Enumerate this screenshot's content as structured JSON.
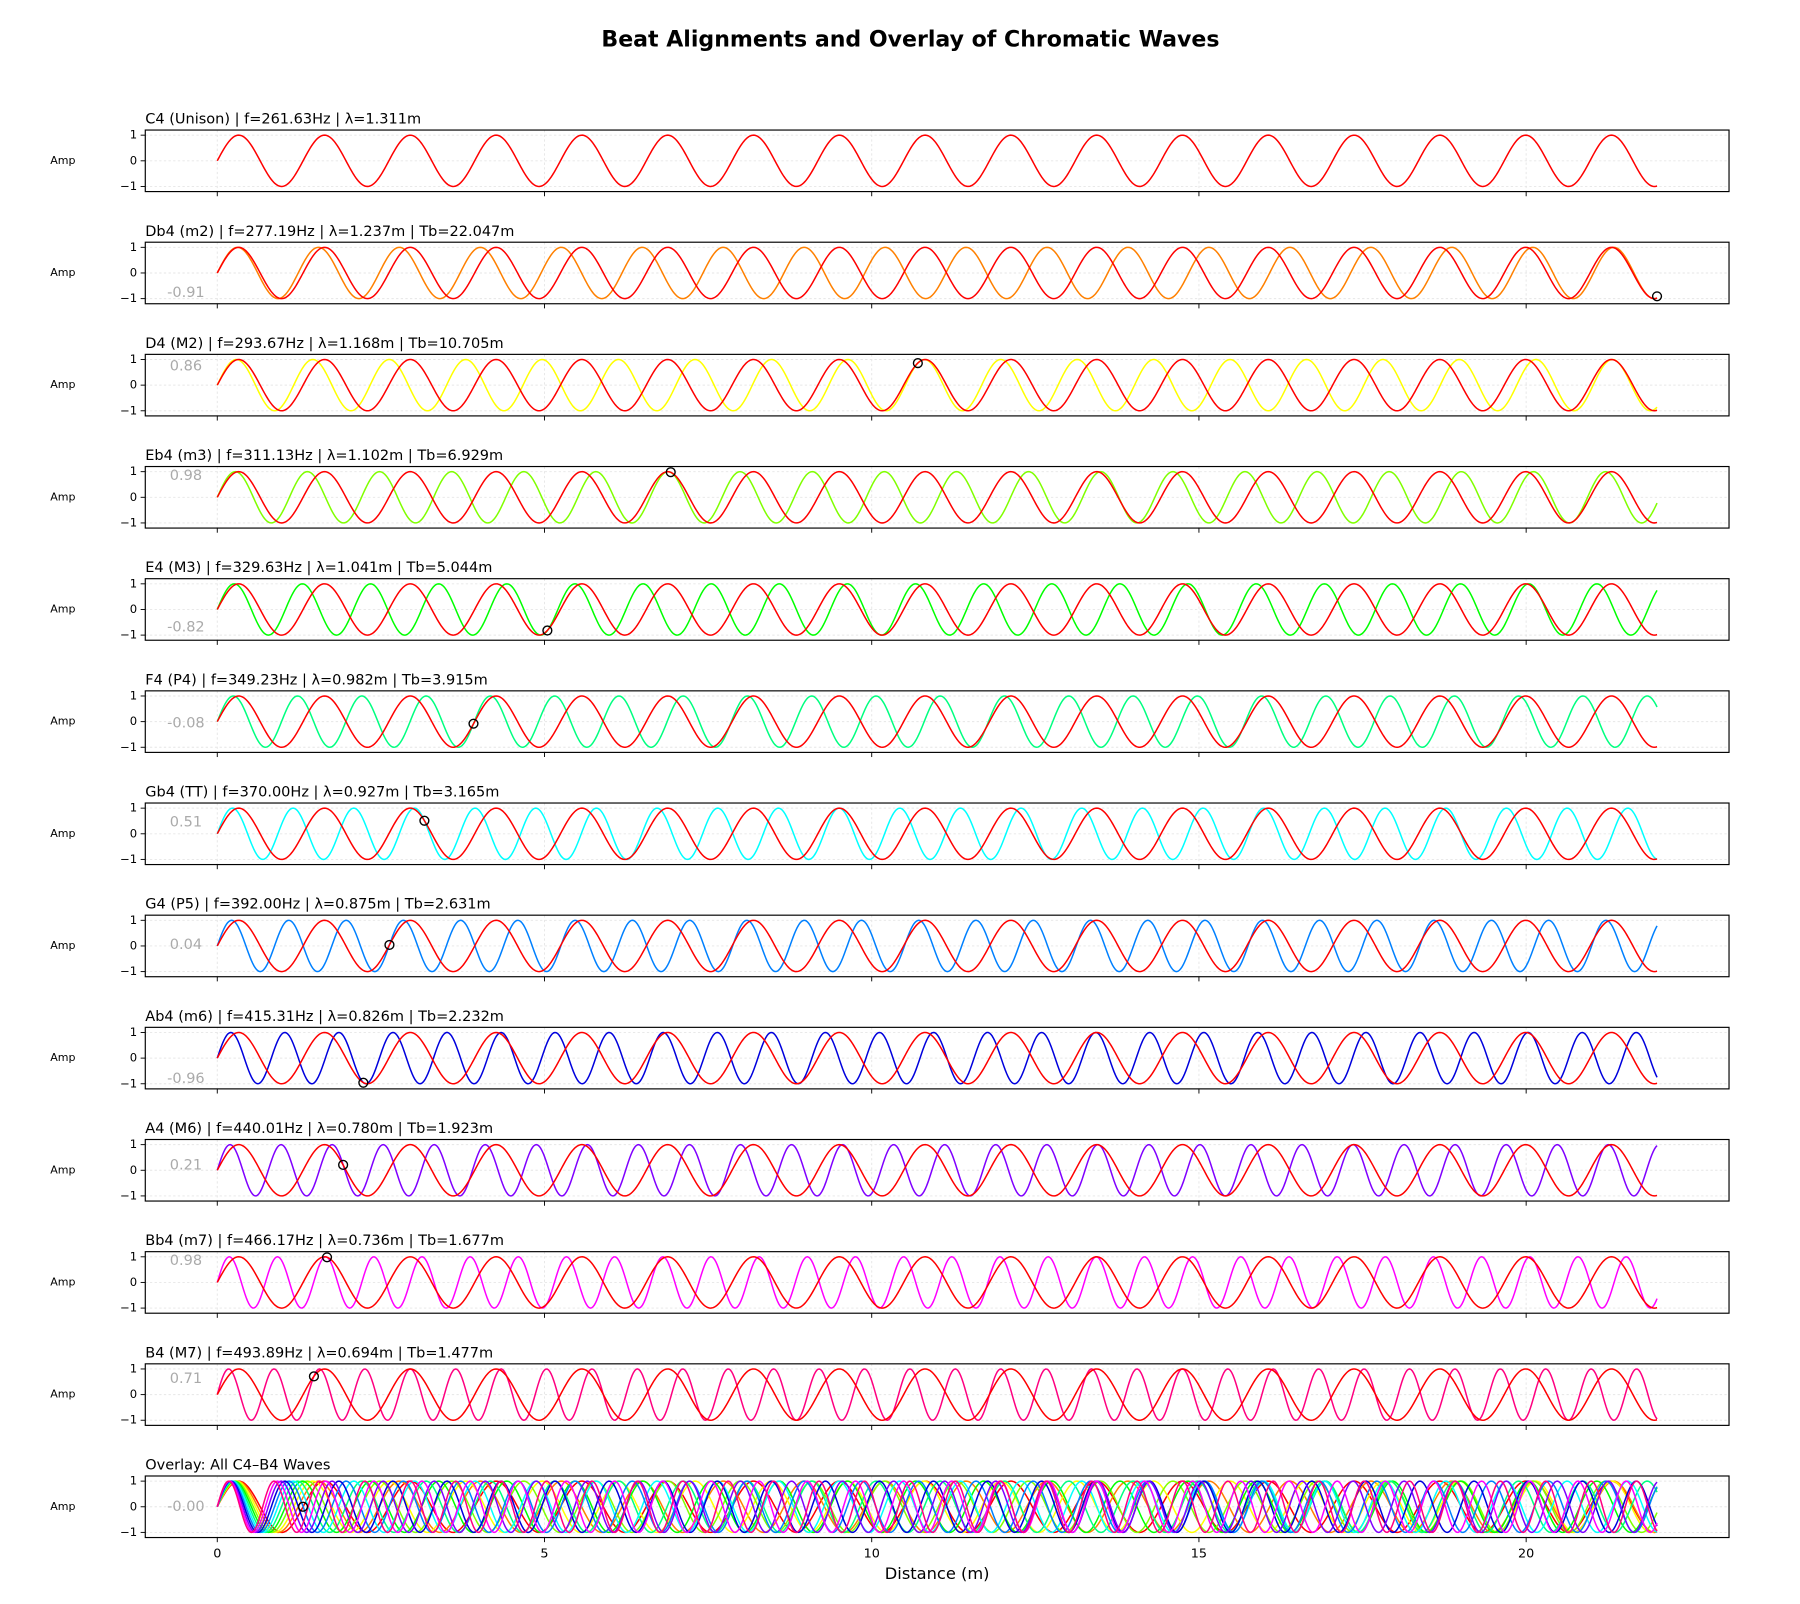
{
  "title": "Beat Alignments and Overlay of Chromatic Waves",
  "chart_data": [
    {
      "type": "wave",
      "title": "C4 (Unison) | f=261.63Hz | λ=1.311m",
      "ylabel": "Amp",
      "xlim": [
        -1.1,
        23.1
      ],
      "ylim": [
        -1.2,
        1.2
      ],
      "xticks": [
        0,
        5,
        10,
        15,
        20
      ],
      "yticks": [
        {
          "value": -1,
          "label": "−1"
        },
        0,
        1
      ],
      "series": [
        {
          "color": "#ff0000",
          "wavelength": 1.311
        }
      ]
    },
    {
      "type": "wave",
      "title": "Db4 (m2) | f=277.19Hz | λ=1.237m | Tb=22.047m",
      "ylabel": "Amp",
      "xlim": [
        -1.1,
        23.1
      ],
      "ylim": [
        -1.2,
        1.2
      ],
      "xticks": [
        0,
        5,
        10,
        15,
        20
      ],
      "yticks": [
        {
          "value": -1,
          "label": "−1"
        },
        0,
        1
      ],
      "series": [
        {
          "color": "#ff8000",
          "wavelength": 1.237
        },
        {
          "color": "#ff0000",
          "wavelength": 1.311
        }
      ],
      "marker": {
        "x": 22.0,
        "y": -0.91,
        "label": "-0.91"
      }
    },
    {
      "type": "wave",
      "title": "D4 (M2) | f=293.67Hz | λ=1.168m | Tb=10.705m",
      "ylabel": "Amp",
      "xlim": [
        -1.1,
        23.1
      ],
      "ylim": [
        -1.2,
        1.2
      ],
      "xticks": [
        0,
        5,
        10,
        15,
        20
      ],
      "yticks": [
        {
          "value": -1,
          "label": "−1"
        },
        0,
        1
      ],
      "series": [
        {
          "color": "#ffff00",
          "wavelength": 1.168
        },
        {
          "color": "#ff0000",
          "wavelength": 1.311
        }
      ],
      "marker": {
        "x": 10.705,
        "y": 0.86,
        "label": "0.86"
      }
    },
    {
      "type": "wave",
      "title": "Eb4 (m3) | f=311.13Hz | λ=1.102m | Tb=6.929m",
      "ylabel": "Amp",
      "xlim": [
        -1.1,
        23.1
      ],
      "ylim": [
        -1.2,
        1.2
      ],
      "xticks": [
        0,
        5,
        10,
        15,
        20
      ],
      "yticks": [
        {
          "value": -1,
          "label": "−1"
        },
        0,
        1
      ],
      "series": [
        {
          "color": "#80ff00",
          "wavelength": 1.102
        },
        {
          "color": "#ff0000",
          "wavelength": 1.311
        }
      ],
      "marker": {
        "x": 6.929,
        "y": 0.98,
        "label": "0.98"
      }
    },
    {
      "type": "wave",
      "title": "E4 (M3) | f=329.63Hz | λ=1.041m | Tb=5.044m",
      "ylabel": "Amp",
      "xlim": [
        -1.1,
        23.1
      ],
      "ylim": [
        -1.2,
        1.2
      ],
      "xticks": [
        0,
        5,
        10,
        15,
        20
      ],
      "yticks": [
        {
          "value": -1,
          "label": "−1"
        },
        0,
        1
      ],
      "series": [
        {
          "color": "#00ff00",
          "wavelength": 1.041
        },
        {
          "color": "#ff0000",
          "wavelength": 1.311
        }
      ],
      "marker": {
        "x": 5.044,
        "y": -0.82,
        "label": "-0.82"
      }
    },
    {
      "type": "wave",
      "title": "F4 (P4) | f=349.23Hz | λ=0.982m | Tb=3.915m",
      "ylabel": "Amp",
      "xlim": [
        -1.1,
        23.1
      ],
      "ylim": [
        -1.2,
        1.2
      ],
      "xticks": [
        0,
        5,
        10,
        15,
        20
      ],
      "yticks": [
        {
          "value": -1,
          "label": "−1"
        },
        0,
        1
      ],
      "series": [
        {
          "color": "#00ff80",
          "wavelength": 0.982
        },
        {
          "color": "#ff0000",
          "wavelength": 1.311
        }
      ],
      "marker": {
        "x": 3.915,
        "y": -0.08,
        "label": "-0.08"
      }
    },
    {
      "type": "wave",
      "title": "Gb4 (TT) | f=370.00Hz | λ=0.927m | Tb=3.165m",
      "ylabel": "Amp",
      "xlim": [
        -1.1,
        23.1
      ],
      "ylim": [
        -1.2,
        1.2
      ],
      "xticks": [
        0,
        5,
        10,
        15,
        20
      ],
      "yticks": [
        {
          "value": -1,
          "label": "−1"
        },
        0,
        1
      ],
      "series": [
        {
          "color": "#00ffff",
          "wavelength": 0.927
        },
        {
          "color": "#ff0000",
          "wavelength": 1.311
        }
      ],
      "marker": {
        "x": 3.165,
        "y": 0.51,
        "label": "0.51"
      }
    },
    {
      "type": "wave",
      "title": "G4 (P5) | f=392.00Hz | λ=0.875m | Tb=2.631m",
      "ylabel": "Amp",
      "xlim": [
        -1.1,
        23.1
      ],
      "ylim": [
        -1.2,
        1.2
      ],
      "xticks": [
        0,
        5,
        10,
        15,
        20
      ],
      "yticks": [
        {
          "value": -1,
          "label": "−1"
        },
        0,
        1
      ],
      "series": [
        {
          "color": "#0080ff",
          "wavelength": 0.875
        },
        {
          "color": "#ff0000",
          "wavelength": 1.311
        }
      ],
      "marker": {
        "x": 2.631,
        "y": 0.04,
        "label": "0.04"
      }
    },
    {
      "type": "wave",
      "title": "Ab4 (m6) | f=415.31Hz | λ=0.826m | Tb=2.232m",
      "ylabel": "Amp",
      "xlim": [
        -1.1,
        23.1
      ],
      "ylim": [
        -1.2,
        1.2
      ],
      "xticks": [
        0,
        5,
        10,
        15,
        20
      ],
      "yticks": [
        {
          "value": -1,
          "label": "−1"
        },
        0,
        1
      ],
      "series": [
        {
          "color": "#0000dd",
          "wavelength": 0.826
        },
        {
          "color": "#ff0000",
          "wavelength": 1.311
        }
      ],
      "marker": {
        "x": 2.232,
        "y": -0.96,
        "label": "-0.96"
      }
    },
    {
      "type": "wave",
      "title": "A4 (M6) | f=440.01Hz | λ=0.780m | Tb=1.923m",
      "ylabel": "Amp",
      "xlim": [
        -1.1,
        23.1
      ],
      "ylim": [
        -1.2,
        1.2
      ],
      "xticks": [
        0,
        5,
        10,
        15,
        20
      ],
      "yticks": [
        {
          "value": -1,
          "label": "−1"
        },
        0,
        1
      ],
      "series": [
        {
          "color": "#8000ff",
          "wavelength": 0.78
        },
        {
          "color": "#ff0000",
          "wavelength": 1.311
        }
      ],
      "marker": {
        "x": 1.923,
        "y": 0.21,
        "label": "0.21"
      }
    },
    {
      "type": "wave",
      "title": "Bb4 (m7) | f=466.17Hz | λ=0.736m | Tb=1.677m",
      "ylabel": "Amp",
      "xlim": [
        -1.1,
        23.1
      ],
      "ylim": [
        -1.2,
        1.2
      ],
      "xticks": [
        0,
        5,
        10,
        15,
        20
      ],
      "yticks": [
        {
          "value": -1,
          "label": "−1"
        },
        0,
        1
      ],
      "series": [
        {
          "color": "#ff00ff",
          "wavelength": 0.736
        },
        {
          "color": "#ff0000",
          "wavelength": 1.311
        }
      ],
      "marker": {
        "x": 1.677,
        "y": 0.98,
        "label": "0.98"
      }
    },
    {
      "type": "wave",
      "title": "B4 (M7) | f=493.89Hz | λ=0.694m | Tb=1.477m",
      "ylabel": "Amp",
      "xlim": [
        -1.1,
        23.1
      ],
      "ylim": [
        -1.2,
        1.2
      ],
      "xticks": [
        0,
        5,
        10,
        15,
        20
      ],
      "yticks": [
        {
          "value": -1,
          "label": "−1"
        },
        0,
        1
      ],
      "series": [
        {
          "color": "#ff0080",
          "wavelength": 0.694
        },
        {
          "color": "#ff0000",
          "wavelength": 1.311
        }
      ],
      "marker": {
        "x": 1.477,
        "y": 0.71,
        "label": "0.71"
      }
    },
    {
      "type": "wave",
      "title": "Overlay: All C4–B4 Waves",
      "ylabel": "Amp",
      "xlabel": "Distance (m)",
      "xlim": [
        -1.1,
        23.1
      ],
      "ylim": [
        -1.2,
        1.2
      ],
      "xticks": [
        0,
        5,
        10,
        15,
        20
      ],
      "yticks": [
        {
          "value": -1,
          "label": "−1"
        },
        0,
        1
      ],
      "series": [
        {
          "color": "#ff0000",
          "wavelength": 1.311
        },
        {
          "color": "#ff8000",
          "wavelength": 1.237
        },
        {
          "color": "#ffff00",
          "wavelength": 1.168
        },
        {
          "color": "#80ff00",
          "wavelength": 1.102
        },
        {
          "color": "#00ff00",
          "wavelength": 1.041
        },
        {
          "color": "#00ff80",
          "wavelength": 0.982
        },
        {
          "color": "#00ffff",
          "wavelength": 0.927
        },
        {
          "color": "#0080ff",
          "wavelength": 0.875
        },
        {
          "color": "#0000dd",
          "wavelength": 0.826
        },
        {
          "color": "#8000ff",
          "wavelength": 0.78
        },
        {
          "color": "#ff00ff",
          "wavelength": 0.736
        },
        {
          "color": "#ff0080",
          "wavelength": 0.694
        }
      ],
      "marker": {
        "x": 1.31,
        "y": 0,
        "label": "-0.00"
      }
    }
  ]
}
